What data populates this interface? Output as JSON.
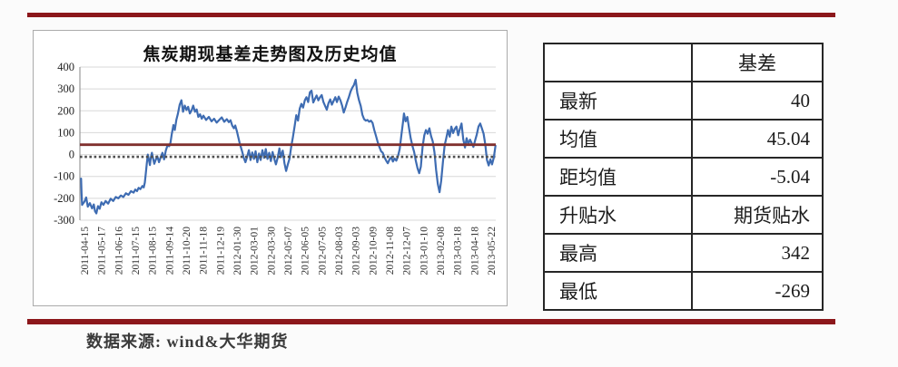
{
  "chart_data": {
    "type": "line",
    "title": "焦炭期现基差走势图及历史均值",
    "ylim": [
      -300,
      400
    ],
    "y_ticks": [
      400,
      300,
      200,
      100,
      0,
      -100,
      -200,
      -300
    ],
    "x_labels": [
      "2011-04-15",
      "2011-05-17",
      "2011-06-16",
      "2011-07-15",
      "2011-08-15",
      "2011-09-14",
      "2011-10-20",
      "2011-11-18",
      "2011-12-19",
      "2012-01-30",
      "2012-03-01",
      "2012-03-30",
      "2012-05-07",
      "2012-06-05",
      "2012-07-05",
      "2012-08-03",
      "2012-09-03",
      "2012-10-09",
      "2012-11-08",
      "2012-12-07",
      "2013-01-10",
      "2013-02-08",
      "2013-03-18",
      "2013-04-18",
      "2013-05-22"
    ],
    "grid": true,
    "legend": "none",
    "mean_line": {
      "label": "历史均值",
      "value": 45.04
    },
    "zero_line": {
      "style": "dotted",
      "value": 0
    },
    "series": [
      {
        "name": "基差",
        "x_unit": "tick_index_0_to_24",
        "points": [
          [
            -0.2,
            -110
          ],
          [
            -0.17,
            -175
          ],
          [
            -0.14,
            -230
          ],
          [
            0,
            -215
          ],
          [
            0.1,
            -196
          ],
          [
            0.2,
            -238
          ],
          [
            0.32,
            -222
          ],
          [
            0.45,
            -246
          ],
          [
            0.55,
            -228
          ],
          [
            0.62,
            -258
          ],
          [
            0.7,
            -269
          ],
          [
            0.8,
            -236
          ],
          [
            0.9,
            -248
          ],
          [
            1,
            -218
          ],
          [
            1.12,
            -230
          ],
          [
            1.25,
            -212
          ],
          [
            1.4,
            -224
          ],
          [
            1.55,
            -202
          ],
          [
            1.7,
            -212
          ],
          [
            1.85,
            -194
          ],
          [
            2,
            -200
          ],
          [
            2.15,
            -187
          ],
          [
            2.3,
            -194
          ],
          [
            2.45,
            -177
          ],
          [
            2.6,
            -184
          ],
          [
            2.75,
            -167
          ],
          [
            2.9,
            -174
          ],
          [
            3,
            -160
          ],
          [
            3.1,
            -167
          ],
          [
            3.2,
            -152
          ],
          [
            3.3,
            -158
          ],
          [
            3.42,
            -144
          ],
          [
            3.5,
            -150
          ],
          [
            3.56,
            -128
          ],
          [
            3.62,
            -85
          ],
          [
            3.68,
            -40
          ],
          [
            3.74,
            0
          ],
          [
            3.8,
            -22
          ],
          [
            3.86,
            -48
          ],
          [
            3.92,
            -12
          ],
          [
            3.98,
            8
          ],
          [
            4.05,
            -18
          ],
          [
            4.12,
            -42
          ],
          [
            4.2,
            -25
          ],
          [
            4.3,
            -8
          ],
          [
            4.4,
            -35
          ],
          [
            4.5,
            -12
          ],
          [
            4.6,
            8
          ],
          [
            4.7,
            -22
          ],
          [
            4.8,
            18
          ],
          [
            4.9,
            42
          ],
          [
            5,
            38
          ],
          [
            5.08,
            55
          ],
          [
            5.15,
            92
          ],
          [
            5.25,
            135
          ],
          [
            5.33,
            112
          ],
          [
            5.42,
            158
          ],
          [
            5.52,
            188
          ],
          [
            5.62,
            228
          ],
          [
            5.72,
            248
          ],
          [
            5.82,
            196
          ],
          [
            5.92,
            224
          ],
          [
            6.02,
            204
          ],
          [
            6.12,
            218
          ],
          [
            6.22,
            188
          ],
          [
            6.32,
            202
          ],
          [
            6.42,
            224
          ],
          [
            6.52,
            196
          ],
          [
            6.62,
            206
          ],
          [
            6.72,
            172
          ],
          [
            6.82,
            184
          ],
          [
            6.92,
            164
          ],
          [
            7.02,
            178
          ],
          [
            7.18,
            158
          ],
          [
            7.34,
            172
          ],
          [
            7.5,
            152
          ],
          [
            7.65,
            164
          ],
          [
            7.8,
            146
          ],
          [
            7.95,
            158
          ],
          [
            8.1,
            170
          ],
          [
            8.25,
            150
          ],
          [
            8.4,
            162
          ],
          [
            8.52,
            148
          ],
          [
            8.62,
            157
          ],
          [
            8.72,
            132
          ],
          [
            8.82,
            120
          ],
          [
            8.9,
            133
          ],
          [
            9,
            105
          ],
          [
            9.15,
            55
          ],
          [
            9.3,
            15
          ],
          [
            9.4,
            -15
          ],
          [
            9.5,
            -35
          ],
          [
            9.6,
            -10
          ],
          [
            9.7,
            20
          ],
          [
            9.8,
            -25
          ],
          [
            9.9,
            10
          ],
          [
            10,
            -20
          ],
          [
            10.1,
            15
          ],
          [
            10.2,
            -35
          ],
          [
            10.3,
            5
          ],
          [
            10.4,
            -25
          ],
          [
            10.5,
            20
          ],
          [
            10.6,
            -15
          ],
          [
            10.7,
            25
          ],
          [
            10.8,
            -20
          ],
          [
            10.9,
            8
          ],
          [
            11,
            -30
          ],
          [
            11.1,
            12
          ],
          [
            11.2,
            -20
          ],
          [
            11.3,
            -45
          ],
          [
            11.4,
            -15
          ],
          [
            11.5,
            28
          ],
          [
            11.6,
            -12
          ],
          [
            11.7,
            18
          ],
          [
            11.8,
            -40
          ],
          [
            11.9,
            -75
          ],
          [
            12,
            -45
          ],
          [
            12.1,
            -18
          ],
          [
            12.2,
            35
          ],
          [
            12.3,
            80
          ],
          [
            12.4,
            130
          ],
          [
            12.5,
            180
          ],
          [
            12.6,
            155
          ],
          [
            12.7,
            210
          ],
          [
            12.8,
            232
          ],
          [
            12.9,
            215
          ],
          [
            13,
            248
          ],
          [
            13.1,
            262
          ],
          [
            13.2,
            240
          ],
          [
            13.3,
            285
          ],
          [
            13.4,
            292
          ],
          [
            13.5,
            238
          ],
          [
            13.6,
            255
          ],
          [
            13.7,
            270
          ],
          [
            13.8,
            248
          ],
          [
            13.9,
            262
          ],
          [
            14,
            272
          ],
          [
            14.1,
            240
          ],
          [
            14.2,
            222
          ],
          [
            14.3,
            205
          ],
          [
            14.4,
            235
          ],
          [
            14.5,
            252
          ],
          [
            14.6,
            228
          ],
          [
            14.7,
            245
          ],
          [
            14.8,
            262
          ],
          [
            14.9,
            240
          ],
          [
            15,
            265
          ],
          [
            15.1,
            248
          ],
          [
            15.2,
            225
          ],
          [
            15.3,
            192
          ],
          [
            15.4,
            215
          ],
          [
            15.5,
            240
          ],
          [
            15.6,
            262
          ],
          [
            15.7,
            288
          ],
          [
            15.8,
            305
          ],
          [
            15.9,
            318
          ],
          [
            16,
            342
          ],
          [
            16.1,
            282
          ],
          [
            16.2,
            248
          ],
          [
            16.3,
            222
          ],
          [
            16.4,
            182
          ],
          [
            16.5,
            162
          ],
          [
            16.6,
            155
          ],
          [
            16.7,
            158
          ],
          [
            16.8,
            150
          ],
          [
            16.9,
            155
          ],
          [
            17,
            145
          ],
          [
            17.1,
            112
          ],
          [
            17.2,
            85
          ],
          [
            17.3,
            58
          ],
          [
            17.4,
            35
          ],
          [
            17.5,
            15
          ],
          [
            17.6,
            8
          ],
          [
            17.7,
            -12
          ],
          [
            17.8,
            -28
          ],
          [
            17.9,
            -40
          ],
          [
            18,
            -22
          ],
          [
            18.1,
            -12
          ],
          [
            18.2,
            -32
          ],
          [
            18.3,
            -18
          ],
          [
            18.4,
            -28
          ],
          [
            18.5,
            -8
          ],
          [
            18.6,
            25
          ],
          [
            18.7,
            90
          ],
          [
            18.8,
            150
          ],
          [
            18.85,
            188
          ],
          [
            18.95,
            152
          ],
          [
            19.05,
            172
          ],
          [
            19.15,
            120
          ],
          [
            19.25,
            75
          ],
          [
            19.35,
            40
          ],
          [
            19.45,
            12
          ],
          [
            19.55,
            -28
          ],
          [
            19.65,
            -62
          ],
          [
            19.75,
            -85
          ],
          [
            19.85,
            -55
          ],
          [
            19.95,
            35
          ],
          [
            20.05,
            88
          ],
          [
            20.15,
            112
          ],
          [
            20.25,
            95
          ],
          [
            20.35,
            120
          ],
          [
            20.45,
            85
          ],
          [
            20.55,
            60
          ],
          [
            20.65,
            10
          ],
          [
            20.75,
            -70
          ],
          [
            20.85,
            -135
          ],
          [
            20.95,
            -172
          ],
          [
            21.05,
            -120
          ],
          [
            21.15,
            -35
          ],
          [
            21.25,
            42
          ],
          [
            21.35,
            75
          ],
          [
            21.45,
            112
          ],
          [
            21.55,
            82
          ],
          [
            21.65,
            128
          ],
          [
            21.75,
            98
          ],
          [
            21.85,
            118
          ],
          [
            21.95,
            128
          ],
          [
            22.05,
            88
          ],
          [
            22.15,
            118
          ],
          [
            22.25,
            142
          ],
          [
            22.35,
            70
          ],
          [
            22.45,
            32
          ],
          [
            22.55,
            75
          ],
          [
            22.65,
            48
          ],
          [
            22.75,
            68
          ],
          [
            22.85,
            52
          ],
          [
            22.95,
            35
          ],
          [
            23.05,
            65
          ],
          [
            23.15,
            92
          ],
          [
            23.25,
            128
          ],
          [
            23.35,
            142
          ],
          [
            23.45,
            120
          ],
          [
            23.55,
            95
          ],
          [
            23.65,
            45
          ],
          [
            23.75,
            -25
          ],
          [
            23.85,
            -50
          ],
          [
            23.95,
            -22
          ],
          [
            24.05,
            -45
          ],
          [
            24.15,
            -15
          ],
          [
            24.25,
            40
          ]
        ]
      }
    ],
    "colors": {
      "series": "#3e6cb2",
      "mean_line": "#80302e",
      "zero_dotted": "#4f4f4f",
      "grid": "#d8d8d8",
      "axis": "#9a9a9a",
      "tick_text": "#333333"
    }
  },
  "table": {
    "header": [
      "",
      "基差"
    ],
    "rows": [
      {
        "label": "最新",
        "value": "40"
      },
      {
        "label": "均值",
        "value": "45.04"
      },
      {
        "label": "距均值",
        "value": "-5.04"
      },
      {
        "label": "升贴水",
        "value": "期货贴水"
      },
      {
        "label": "最高",
        "value": "342"
      },
      {
        "label": "最低",
        "value": "-269"
      }
    ]
  },
  "footer": {
    "source_label": "数据来源: wind&大华期货"
  },
  "rules": {
    "color": "#8c171b"
  }
}
